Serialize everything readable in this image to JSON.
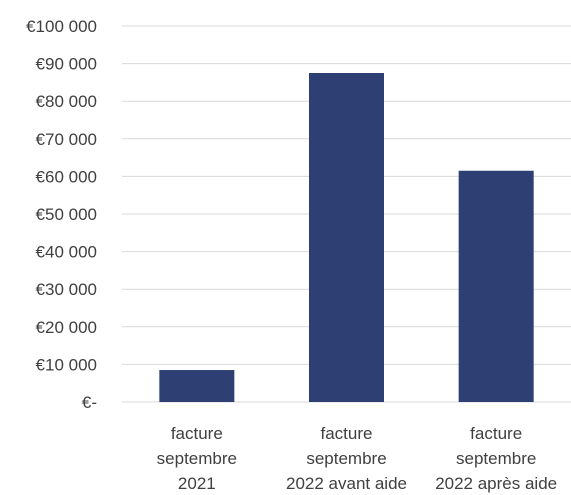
{
  "chart_data": {
    "type": "bar",
    "categories": [
      [
        "facture",
        "septembre",
        "2021"
      ],
      [
        "facture",
        "septembre",
        "2022 avant aide"
      ],
      [
        "facture",
        "septembre",
        "2022 après aide"
      ]
    ],
    "values": [
      8500,
      87500,
      61500
    ],
    "ylim": [
      0,
      100000
    ],
    "y_ticks": [
      0,
      10000,
      20000,
      30000,
      40000,
      50000,
      60000,
      70000,
      80000,
      90000,
      100000
    ],
    "y_tick_labels": [
      "€-",
      "€10 000",
      "€20 000",
      "€30 000",
      "€40 000",
      "€50 000",
      "€60 000",
      "€70 000",
      "€80 000",
      "€90 000",
      "€100 000"
    ],
    "grid": true,
    "bar_color": "#2e3f73",
    "title": "",
    "xlabel": "",
    "ylabel": ""
  }
}
